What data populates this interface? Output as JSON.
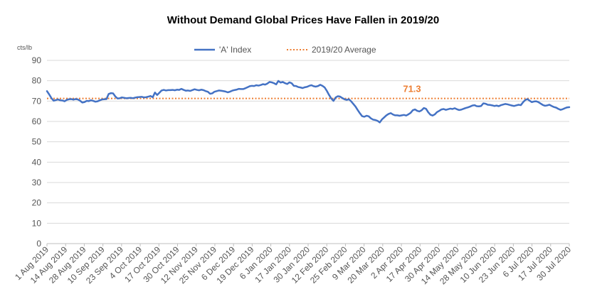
{
  "chart_data": {
    "type": "line",
    "title": "Without Demand Global Prices Have Fallen in 2019/20",
    "unit_label": "cts/lb",
    "ylim": [
      0,
      90
    ],
    "y_ticks": [
      0,
      10,
      20,
      30,
      40,
      50,
      60,
      70,
      80,
      90
    ],
    "grid": "horizontal",
    "legend_position": "top-center",
    "colors": {
      "index": "#4472C4",
      "average": "#ED7D31",
      "grid": "#D9D9D9",
      "axis": "#BFBFBF"
    },
    "x_ticks": [
      "1 Aug 2019",
      "14 Aug 2019",
      "28 Aug 2019",
      "10 Sep 2019",
      "23 Sep 2019",
      "4 Oct 2019",
      "17 Oct 2019",
      "30 Oct 2019",
      "12 Nov 2019",
      "25 Nov 2019",
      "6 Dec 2019",
      "19 Dec 2019",
      "6 Jan 2020",
      "17 Jan 2020",
      "30 Jan 2020",
      "12 Feb 2020",
      "25 Feb 2020",
      "9 Mar 2020",
      "20 Mar 2020",
      "2 Apr 2020",
      "17 Apr 2020",
      "30 Apr 2020",
      "14 May 2020",
      "28 May 2020",
      "10 Jun 2020",
      "23 Jun 2020",
      "6 Jul 2020",
      "17 Jul 2020",
      "30 Jul 2020"
    ],
    "series": [
      {
        "name": "'A' Index",
        "values": [
          74.9,
          73.3,
          71.5,
          70.2,
          70.5,
          70.8,
          70.4,
          70.3,
          69.9,
          70.6,
          70.9,
          71.0,
          70.7,
          71.0,
          70.8,
          70.2,
          69.3,
          69.5,
          70.1,
          70.0,
          70.4,
          70.1,
          69.7,
          69.9,
          70.4,
          70.8,
          70.9,
          71.0,
          73.5,
          73.9,
          73.8,
          72.3,
          71.3,
          71.4,
          71.8,
          71.6,
          71.4,
          71.5,
          71.6,
          71.4,
          71.7,
          71.9,
          72.0,
          72.1,
          71.8,
          71.9,
          72.2,
          72.5,
          71.9,
          74.2,
          73.0,
          74.1,
          75.2,
          75.5,
          75.2,
          75.4,
          75.4,
          75.5,
          75.3,
          75.6,
          75.5,
          76.0,
          75.5,
          75.1,
          75.2,
          75.0,
          75.4,
          75.8,
          75.5,
          75.3,
          75.6,
          75.4,
          74.9,
          74.6,
          73.6,
          73.8,
          74.6,
          74.9,
          75.2,
          75.1,
          74.9,
          74.7,
          74.3,
          74.6,
          75.1,
          75.4,
          75.6,
          76.0,
          75.9,
          75.9,
          76.3,
          76.8,
          77.3,
          77.5,
          77.4,
          77.8,
          77.6,
          77.9,
          78.3,
          78.1,
          78.6,
          79.4,
          79.2,
          78.8,
          78.2,
          79.9,
          79.1,
          79.4,
          78.8,
          78.4,
          79.2,
          78.8,
          77.5,
          77.4,
          76.9,
          76.7,
          76.4,
          76.8,
          77.0,
          77.5,
          77.8,
          77.3,
          77.1,
          77.4,
          78.0,
          77.5,
          76.7,
          75.0,
          73.0,
          71.3,
          70.1,
          71.8,
          72.4,
          72.2,
          71.5,
          70.9,
          70.6,
          70.9,
          69.9,
          68.6,
          67.3,
          65.6,
          64.0,
          62.6,
          62.3,
          62.8,
          62.5,
          61.5,
          60.9,
          60.7,
          60.3,
          59.5,
          61.0,
          62.0,
          63.0,
          63.7,
          64.1,
          63.4,
          63.0,
          63.0,
          62.8,
          63.0,
          63.2,
          62.9,
          63.5,
          64.2,
          65.5,
          65.9,
          65.2,
          64.9,
          65.5,
          66.6,
          66.2,
          64.5,
          63.3,
          62.9,
          63.5,
          64.6,
          65.2,
          65.9,
          66.1,
          65.7,
          66.0,
          66.3,
          66.1,
          66.5,
          66.0,
          65.6,
          65.8,
          66.2,
          66.6,
          66.9,
          67.3,
          67.8,
          68.0,
          67.5,
          67.4,
          67.6,
          68.9,
          68.7,
          68.2,
          68.1,
          67.9,
          67.6,
          67.8,
          67.5,
          68.0,
          68.3,
          68.6,
          68.4,
          68.1,
          67.8,
          67.6,
          67.9,
          68.2,
          68.0,
          69.4,
          70.5,
          71.0,
          70.2,
          69.5,
          69.8,
          69.9,
          69.5,
          68.8,
          68.1,
          67.7,
          67.9,
          68.2,
          67.6,
          67.1,
          66.8,
          66.2,
          65.7,
          66.0,
          66.5,
          66.9,
          67.0
        ]
      },
      {
        "name": "2019/20 Average",
        "value": 71.3,
        "label": "71.3"
      }
    ]
  }
}
